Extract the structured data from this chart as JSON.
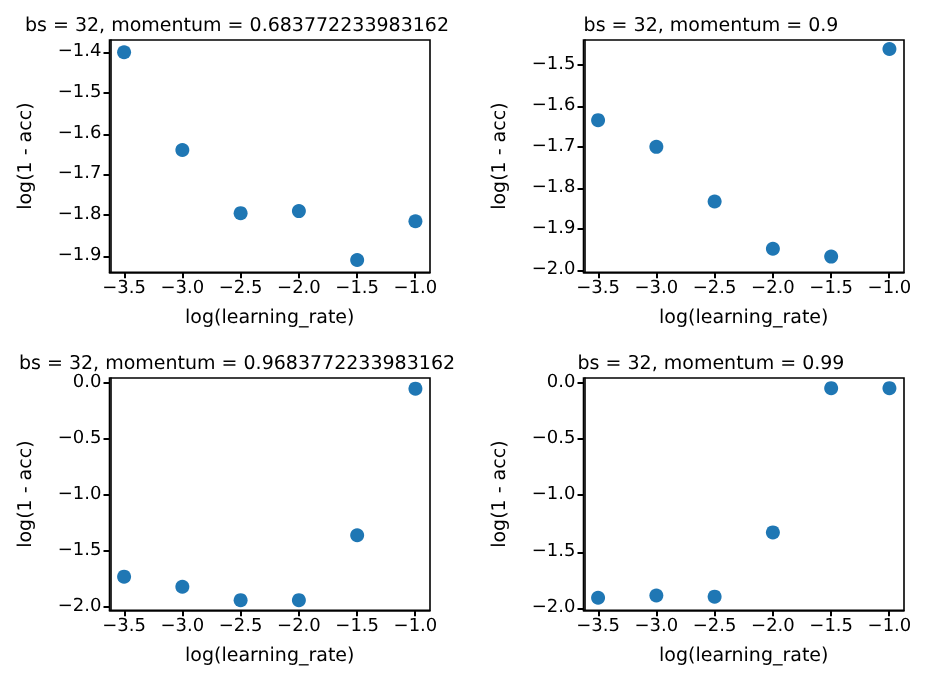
{
  "chart_data": [
    {
      "type": "scatter",
      "title": "bs = 32, momentum = 0.683772233983162",
      "xlabel": "log(learning_rate)",
      "ylabel": "log(1 - acc)",
      "x": [
        -3.5,
        -3.0,
        -2.5,
        -2.0,
        -1.5,
        -1.0
      ],
      "series": [
        {
          "color": "#1f77b4",
          "values": [
            -1.4,
            -1.64,
            -1.795,
            -1.79,
            -1.91,
            -1.815
          ]
        }
      ],
      "marker": "circle",
      "xlim": [
        -3.625,
        -0.875
      ],
      "xticks": [
        {
          "value": -3.5,
          "label": "−3.5"
        },
        {
          "value": -3.0,
          "label": "−3.0"
        },
        {
          "value": -2.5,
          "label": "−2.5"
        },
        {
          "value": -2.0,
          "label": "−2.0"
        },
        {
          "value": -1.5,
          "label": "−1.5"
        },
        {
          "value": -1.0,
          "label": "−1.0"
        }
      ],
      "ylim": [
        -1.94,
        -1.37
      ],
      "yticks": [
        {
          "value": -1.9,
          "label": "−1.9"
        },
        {
          "value": -1.8,
          "label": "−1.8"
        },
        {
          "value": -1.7,
          "label": "−1.7"
        },
        {
          "value": -1.6,
          "label": "−1.6"
        },
        {
          "value": -1.5,
          "label": "−1.5"
        },
        {
          "value": -1.4,
          "label": "−1.4"
        }
      ],
      "grid": false
    },
    {
      "type": "scatter",
      "title": "bs = 32, momentum = 0.9",
      "xlabel": "log(learning_rate)",
      "ylabel": "log(1 - acc)",
      "x": [
        -3.5,
        -3.0,
        -2.5,
        -2.0,
        -1.5,
        -1.0
      ],
      "series": [
        {
          "color": "#1f77b4",
          "values": [
            -1.635,
            -1.7,
            -1.833,
            -1.948,
            -1.967,
            -1.462
          ]
        }
      ],
      "marker": "circle",
      "xlim": [
        -3.625,
        -0.875
      ],
      "xticks": [
        {
          "value": -3.5,
          "label": "−3.5"
        },
        {
          "value": -3.0,
          "label": "−3.0"
        },
        {
          "value": -2.5,
          "label": "−2.5"
        },
        {
          "value": -2.0,
          "label": "−2.0"
        },
        {
          "value": -1.5,
          "label": "−1.5"
        },
        {
          "value": -1.0,
          "label": "−1.0"
        }
      ],
      "ylim": [
        -2.005,
        -1.44
      ],
      "yticks": [
        {
          "value": -2.0,
          "label": "−2.0"
        },
        {
          "value": -1.9,
          "label": "−1.9"
        },
        {
          "value": -1.8,
          "label": "−1.8"
        },
        {
          "value": -1.7,
          "label": "−1.7"
        },
        {
          "value": -1.6,
          "label": "−1.6"
        },
        {
          "value": -1.5,
          "label": "−1.5"
        }
      ],
      "grid": false
    },
    {
      "type": "scatter",
      "title": "bs = 32, momentum = 0.9683772233983162",
      "xlabel": "log(learning_rate)",
      "ylabel": "log(1 - acc)",
      "x": [
        -3.5,
        -3.0,
        -2.5,
        -2.0,
        -1.5,
        -1.0
      ],
      "series": [
        {
          "color": "#1f77b4",
          "values": [
            -1.73,
            -1.82,
            -1.94,
            -1.94,
            -1.36,
            -0.05
          ]
        }
      ],
      "marker": "circle",
      "xlim": [
        -3.625,
        -0.875
      ],
      "xticks": [
        {
          "value": -3.5,
          "label": "−3.5"
        },
        {
          "value": -3.0,
          "label": "−3.0"
        },
        {
          "value": -2.5,
          "label": "−2.5"
        },
        {
          "value": -2.0,
          "label": "−2.0"
        },
        {
          "value": -1.5,
          "label": "−1.5"
        },
        {
          "value": -1.0,
          "label": "−1.0"
        }
      ],
      "ylim": [
        -2.03,
        0.045
      ],
      "yticks": [
        {
          "value": -2.0,
          "label": "−2.0"
        },
        {
          "value": -1.5,
          "label": "−1.5"
        },
        {
          "value": -1.0,
          "label": "−1.0"
        },
        {
          "value": -0.5,
          "label": "−0.5"
        },
        {
          "value": 0.0,
          "label": "0.0"
        }
      ],
      "grid": false
    },
    {
      "type": "scatter",
      "title": "bs = 32, momentum = 0.99",
      "xlabel": "log(learning_rate)",
      "ylabel": "log(1 - acc)",
      "x": [
        -3.5,
        -3.0,
        -2.5,
        -2.0,
        -1.5,
        -1.0
      ],
      "series": [
        {
          "color": "#1f77b4",
          "values": [
            -1.91,
            -1.89,
            -1.9,
            -1.33,
            -0.05,
            -0.05
          ]
        }
      ],
      "marker": "circle",
      "xlim": [
        -3.625,
        -0.875
      ],
      "xticks": [
        {
          "value": -3.5,
          "label": "−3.5"
        },
        {
          "value": -3.0,
          "label": "−3.0"
        },
        {
          "value": -2.5,
          "label": "−2.5"
        },
        {
          "value": -2.0,
          "label": "−2.0"
        },
        {
          "value": -1.5,
          "label": "−1.5"
        },
        {
          "value": -1.0,
          "label": "−1.0"
        }
      ],
      "ylim": [
        -2.02,
        0.04
      ],
      "yticks": [
        {
          "value": -2.0,
          "label": "−2.0"
        },
        {
          "value": -1.5,
          "label": "−1.5"
        },
        {
          "value": -1.0,
          "label": "−1.0"
        },
        {
          "value": -0.5,
          "label": "−0.5"
        },
        {
          "value": 0.0,
          "label": "0.0"
        }
      ],
      "grid": false
    }
  ]
}
